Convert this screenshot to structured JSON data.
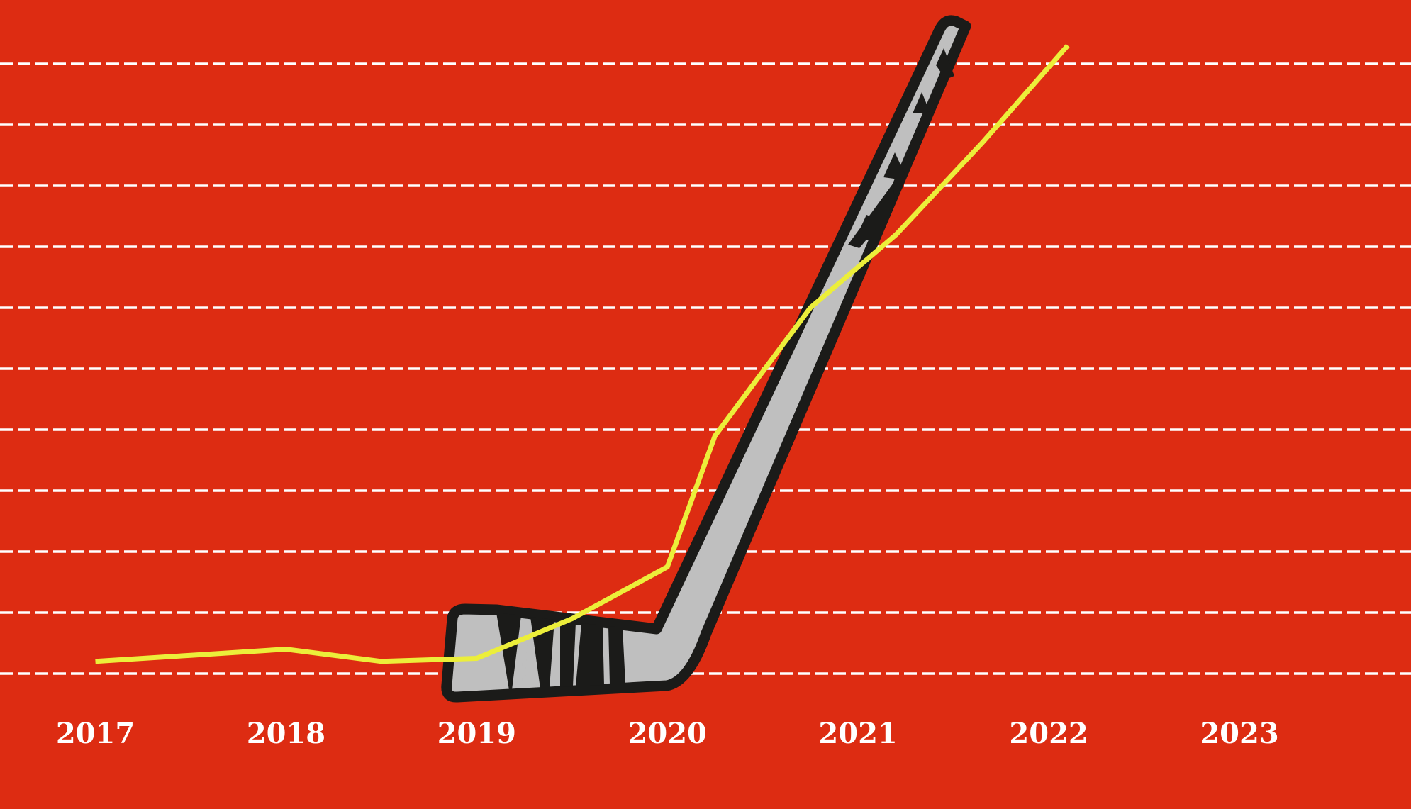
{
  "colors": {
    "background": "#dd2c12",
    "gridline": "#ffffff",
    "line": "#ecee3a",
    "stick_fill": "#bfbfbf",
    "stick_outline": "#1b1b19",
    "tick_text": "#ffffff"
  },
  "decoration": {
    "icon": "hockey-stick-icon"
  },
  "chart_data": {
    "type": "line",
    "title": "",
    "xlabel": "",
    "ylabel": "",
    "grid": true,
    "legend": "none",
    "categories": [
      "2017",
      "2018",
      "2019",
      "2020",
      "2021",
      "2022",
      "2023"
    ],
    "x": [
      2017,
      2017.5,
      2018,
      2018.5,
      2019,
      2019.5,
      2020,
      2020.25,
      2020.75,
      2021.2,
      2021.65,
      2022.1
    ],
    "values": [
      0.2,
      0.3,
      0.4,
      0.2,
      0.25,
      0.9,
      1.75,
      3.9,
      6,
      7.2,
      8.7,
      10.3
    ],
    "ylim": [
      0,
      10
    ],
    "xlim": [
      2016.5,
      2023.9
    ]
  }
}
